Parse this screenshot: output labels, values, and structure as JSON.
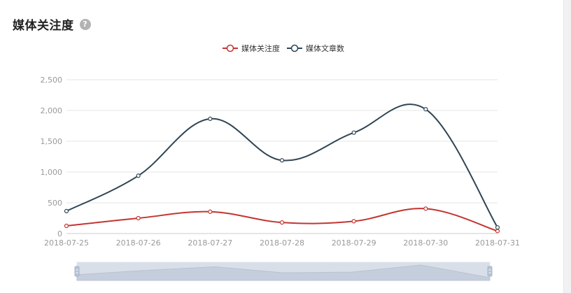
{
  "header": {
    "title": "媒体关注度",
    "help_icon": "question-circle-icon",
    "help_glyph": "?"
  },
  "colors": {
    "series1": "#c23531",
    "series2": "#2f4554",
    "grid": "#e6e6e6",
    "axis_text": "#999999",
    "zoom_fill": "#d5dbe6",
    "zoom_border": "#a9b5c9"
  },
  "chart_data": {
    "type": "line",
    "smooth": true,
    "categories": [
      "2018-07-25",
      "2018-07-26",
      "2018-07-27",
      "2018-07-28",
      "2018-07-29",
      "2018-07-30",
      "2018-07-31"
    ],
    "series": [
      {
        "name": "媒体关注度",
        "values": [
          125,
          250,
          355,
          180,
          200,
          405,
          40
        ]
      },
      {
        "name": "媒体文章数",
        "values": [
          365,
          940,
          1865,
          1190,
          1640,
          2020,
          100
        ]
      }
    ],
    "ylim": [
      0,
      2500
    ],
    "yticks": [
      0,
      500,
      1000,
      1500,
      2000,
      2500
    ],
    "ytick_labels": [
      "0",
      "500",
      "1,000",
      "1,500",
      "2,000",
      "2,500"
    ],
    "legend_position": "top-center",
    "grid": true,
    "data_zoom": {
      "type": "slider",
      "start": 0,
      "end": 1
    }
  }
}
